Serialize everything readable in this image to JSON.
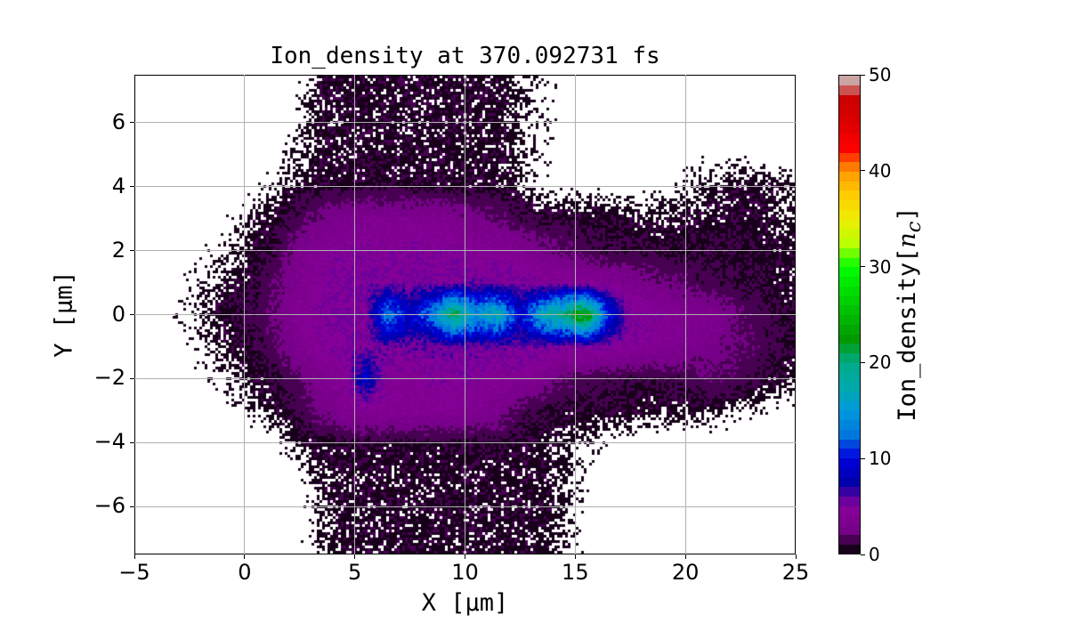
{
  "chart_data": {
    "type": "heatmap",
    "title": "Ion_density at 370.092731 fs",
    "xlabel": "X [μm]",
    "ylabel": "Y [μm]",
    "xlim": [
      -5,
      25
    ],
    "ylim": [
      -7.5,
      7.5
    ],
    "grid": true,
    "xticks": [
      -5,
      0,
      5,
      10,
      15,
      20,
      25
    ],
    "yticks": [
      -6,
      -4,
      -2,
      0,
      2,
      4,
      6
    ],
    "colormap": "nipy_spectral",
    "colorbar": {
      "label_prefix": "Ion_density[",
      "label_var": "n",
      "label_sub": "c",
      "label_suffix": "]",
      "range": [
        0,
        50
      ],
      "ticks": [
        0,
        10,
        20,
        30,
        40,
        50
      ],
      "levels": 50
    },
    "grid_x_centers": [
      -4.5,
      -3.5,
      -2.5,
      -1.5,
      -0.5,
      0.5,
      1.5,
      2.5,
      3.5,
      4.5,
      5.5,
      6.5,
      7.5,
      8.5,
      9.5,
      10.5,
      11.5,
      12.5,
      13.5,
      14.5,
      15.5,
      16.5,
      17.5,
      18.5,
      19.5,
      20.5,
      21.5,
      22.5,
      23.5,
      24.5
    ],
    "grid_y_centers": [
      7,
      6,
      5,
      4,
      3,
      2,
      1,
      0,
      -1,
      -2,
      -3,
      -4,
      -5,
      -6,
      -7
    ],
    "values": [
      [
        0,
        0,
        0,
        0,
        0,
        0,
        0,
        0.3,
        0.8,
        0.8,
        0.8,
        0.8,
        0.8,
        0.8,
        0.8,
        0.8,
        0.8,
        0.6,
        0.3,
        0.2,
        0,
        0,
        0,
        0,
        0,
        0,
        0,
        0,
        0,
        0
      ],
      [
        0,
        0,
        0,
        0,
        0,
        0,
        0,
        0.4,
        0.8,
        0.8,
        0.8,
        0.8,
        0.8,
        0.8,
        0.8,
        0.8,
        0.8,
        0.6,
        0.3,
        0.2,
        0,
        0,
        0,
        0,
        0,
        0,
        0,
        0,
        0,
        0
      ],
      [
        0,
        0,
        0,
        0,
        0,
        0,
        0.2,
        0.5,
        0.8,
        0.8,
        0.8,
        0.8,
        0.8,
        0.8,
        0.8,
        0.8,
        0.8,
        0.6,
        0.3,
        0.2,
        0.1,
        0,
        0,
        0,
        0,
        0.2,
        0.2,
        0.3,
        0,
        0
      ],
      [
        0,
        0,
        0,
        0,
        0,
        0.2,
        0.5,
        0.8,
        0.9,
        0.9,
        0.9,
        0.9,
        0.9,
        0.9,
        0.8,
        0.8,
        0.8,
        0.6,
        0.2,
        0.2,
        0.2,
        0.2,
        0.1,
        0.2,
        0.3,
        0.5,
        0.7,
        0.8,
        0.8,
        0.6
      ],
      [
        0,
        0,
        0,
        0.1,
        0.3,
        0.7,
        0.9,
        1.5,
        2.5,
        3,
        3.5,
        3.5,
        3.5,
        3.5,
        3,
        2.5,
        2,
        1.2,
        1,
        1,
        0.9,
        0.9,
        0.8,
        0.7,
        0.7,
        0.8,
        0.8,
        0.9,
        0.8,
        0.7
      ],
      [
        0,
        0,
        0.2,
        0.3,
        0.5,
        0.8,
        1.2,
        3,
        4,
        4.5,
        4.5,
        4.5,
        4.5,
        4.5,
        4.5,
        4,
        4,
        3.5,
        2.5,
        2,
        1.5,
        1.2,
        1,
        1,
        1,
        1,
        1,
        0.9,
        0.9,
        0.8
      ],
      [
        0,
        0.1,
        0.3,
        0.5,
        0.8,
        1,
        2,
        3.5,
        4.5,
        5,
        5,
        5,
        5,
        5,
        5,
        5.5,
        5,
        5,
        4.5,
        4.5,
        4,
        3.5,
        3,
        2.5,
        2,
        1.5,
        1.2,
        1,
        1,
        0.8
      ],
      [
        0,
        0.2,
        0.4,
        0.7,
        1,
        1.2,
        2.5,
        4,
        4.5,
        5,
        5,
        14,
        9,
        13,
        22,
        15,
        18,
        9,
        17,
        20,
        25,
        11,
        5,
        4.5,
        4,
        3.5,
        3,
        2,
        1.2,
        0.9
      ],
      [
        0,
        0.1,
        0.3,
        0.5,
        0.8,
        1,
        2,
        3.5,
        4.5,
        5,
        5,
        5.5,
        5.5,
        5.5,
        5.5,
        5.5,
        5.5,
        5.5,
        5.5,
        5,
        5,
        5,
        4.5,
        4,
        3.5,
        3,
        2.5,
        2,
        1.5,
        1
      ],
      [
        0,
        0,
        0.2,
        0.3,
        0.5,
        0.8,
        1,
        2,
        3.5,
        4,
        9,
        4,
        4,
        4.5,
        4.5,
        4.5,
        4,
        4,
        3,
        2,
        1.5,
        1.2,
        1,
        1,
        1.2,
        1.5,
        2,
        1.5,
        1,
        0.7
      ],
      [
        0,
        0,
        0,
        0.1,
        0.3,
        0.5,
        0.8,
        1.2,
        2.5,
        3.5,
        4,
        4,
        4,
        4,
        4,
        3.5,
        3,
        1.5,
        1,
        0.9,
        0.9,
        0.9,
        0.9,
        0.8,
        0.7,
        0.7,
        0.6,
        0.4,
        0.3,
        0.2
      ],
      [
        0,
        0,
        0,
        0,
        0,
        0.1,
        0.3,
        0.7,
        0.9,
        0.9,
        0.9,
        0.9,
        0.9,
        0.9,
        0.9,
        0.9,
        0.9,
        0.9,
        0.8,
        0.6,
        0.4,
        0.3,
        0.2,
        0.1,
        0,
        0,
        0.1,
        0,
        0,
        0
      ],
      [
        0,
        0,
        0,
        0,
        0,
        0,
        0,
        0.3,
        0.7,
        0.8,
        0.8,
        0.8,
        0.8,
        0.8,
        0.8,
        0.8,
        0.8,
        0.8,
        0.8,
        0.6,
        0.3,
        0.1,
        0,
        0,
        0,
        0,
        0,
        0,
        0,
        0
      ],
      [
        0,
        0,
        0,
        0,
        0,
        0,
        0,
        0.2,
        0.6,
        0.8,
        0.8,
        0.8,
        0.8,
        0.8,
        0.8,
        0.8,
        0.8,
        0.8,
        0.8,
        0.6,
        0.2,
        0,
        0,
        0,
        0,
        0,
        0,
        0,
        0,
        0
      ],
      [
        0,
        0,
        0,
        0,
        0,
        0,
        0,
        0.2,
        0.6,
        0.8,
        0.8,
        0.8,
        0.8,
        0.8,
        0.8,
        0.8,
        0.8,
        0.8,
        0.7,
        0.5,
        0.2,
        0,
        0,
        0.1,
        0,
        0,
        0,
        0,
        0,
        0
      ]
    ]
  }
}
